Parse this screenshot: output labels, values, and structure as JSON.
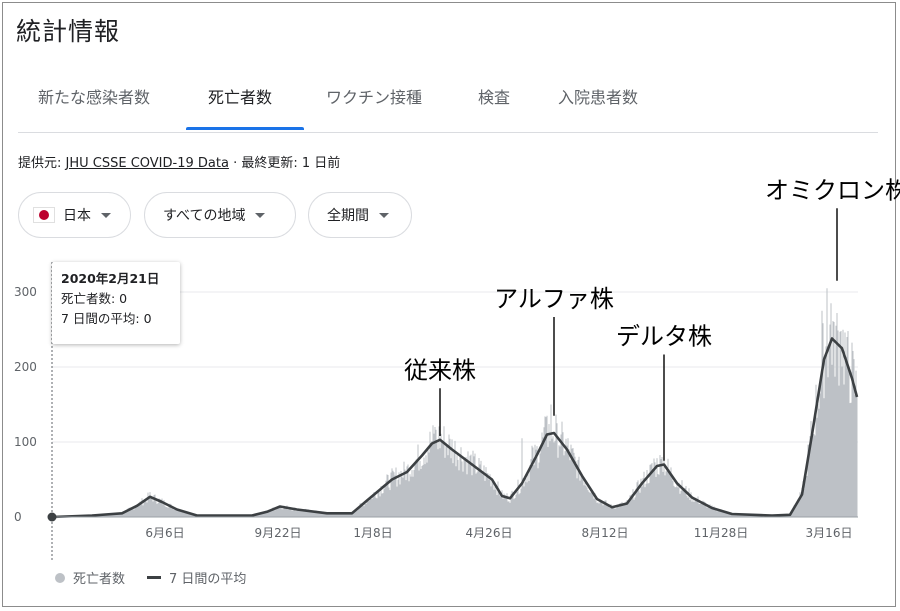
{
  "title": "統計情報",
  "tabs": [
    {
      "label": "新たな感染者数"
    },
    {
      "label": "死亡者数"
    },
    {
      "label": "ワクチン接種"
    },
    {
      "label": "検査"
    },
    {
      "label": "入院患者数"
    }
  ],
  "source": {
    "prefix": "提供元: ",
    "link": "JHU CSSE COVID-19 Data",
    "suffix": " · 最終更新: 1 日前"
  },
  "filters": {
    "country": "日本",
    "region": "すべての地域",
    "period": "全期間"
  },
  "tooltip": {
    "date": "2020年2月21日",
    "deaths": "死亡者数: 0",
    "avg": "7 日間の平均: 0"
  },
  "legend": {
    "daily": "死亡者数",
    "avg": "7 日間の平均"
  },
  "colors": {
    "bars": "#bdc1c6",
    "avg_line": "#3c4043",
    "grid": "#e8eaed",
    "accent": "#1a73e8",
    "flag_red": "#bc002d"
  },
  "chart_data": {
    "type": "bar",
    "x_tick_labels": [
      "6月6日",
      "9月22日",
      "1月8日",
      "4月26日",
      "8月12日",
      "11月28日",
      "3月16日"
    ],
    "y_tick_labels": [
      "0",
      "100",
      "200",
      "300"
    ],
    "ylim": [
      0,
      320
    ],
    "grid": true,
    "legend_position": "bottom-left",
    "series": [
      {
        "name": "死亡者数",
        "type": "bar"
      },
      {
        "name": "7 日間の平均",
        "type": "line"
      }
    ],
    "avg_points": [
      [
        0,
        0
      ],
      [
        40,
        2
      ],
      [
        70,
        5
      ],
      [
        85,
        15
      ],
      [
        98,
        27
      ],
      [
        110,
        20
      ],
      [
        125,
        10
      ],
      [
        145,
        2
      ],
      [
        200,
        2
      ],
      [
        215,
        7
      ],
      [
        228,
        14
      ],
      [
        245,
        10
      ],
      [
        275,
        5
      ],
      [
        300,
        5
      ],
      [
        315,
        22
      ],
      [
        340,
        50
      ],
      [
        355,
        60
      ],
      [
        370,
        82
      ],
      [
        380,
        98
      ],
      [
        388,
        103
      ],
      [
        400,
        90
      ],
      [
        420,
        70
      ],
      [
        440,
        50
      ],
      [
        450,
        28
      ],
      [
        458,
        25
      ],
      [
        470,
        45
      ],
      [
        485,
        83
      ],
      [
        495,
        110
      ],
      [
        502,
        112
      ],
      [
        515,
        90
      ],
      [
        530,
        55
      ],
      [
        545,
        24
      ],
      [
        560,
        13
      ],
      [
        575,
        18
      ],
      [
        590,
        45
      ],
      [
        605,
        68
      ],
      [
        612,
        70
      ],
      [
        625,
        45
      ],
      [
        640,
        26
      ],
      [
        660,
        12
      ],
      [
        680,
        4
      ],
      [
        720,
        2
      ],
      [
        738,
        3
      ],
      [
        750,
        30
      ],
      [
        760,
        110
      ],
      [
        772,
        210
      ],
      [
        780,
        238
      ],
      [
        790,
        225
      ],
      [
        800,
        185
      ],
      [
        805,
        160
      ]
    ],
    "annotations": [
      {
        "text": "従来株",
        "x": 388,
        "y": 108,
        "label_y": 185
      },
      {
        "text": "アルファ株",
        "x": 502,
        "y": 135,
        "label_y": 280
      },
      {
        "text": "デルタ株",
        "x": 612,
        "y": 75,
        "label_y": 230
      },
      {
        "text": "オミクロン株",
        "x": 785,
        "y": 315,
        "label_y": 425
      }
    ]
  }
}
